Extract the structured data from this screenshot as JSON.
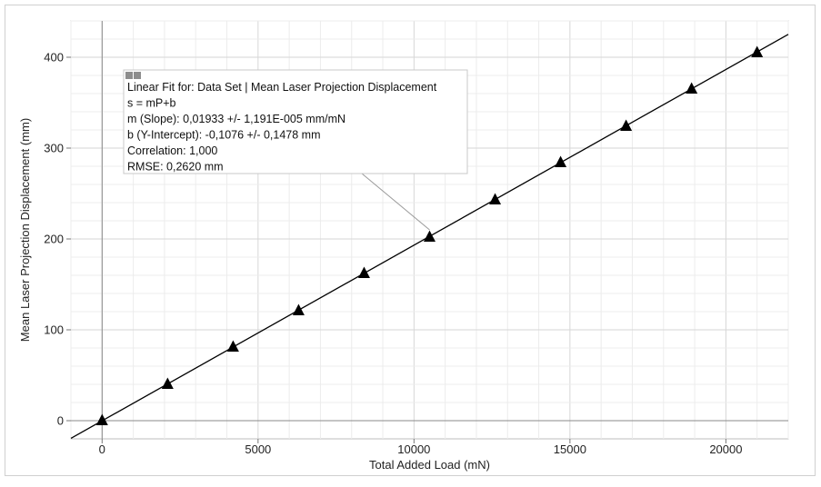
{
  "chart_data": {
    "type": "scatter",
    "xlabel": "Total Added Load (mN)",
    "ylabel": "Mean Laser Projection Displacement (mm)",
    "xlim": [
      -1000,
      22000
    ],
    "ylim": [
      -20,
      440
    ],
    "x_ticks": [
      0,
      5000,
      10000,
      15000,
      20000
    ],
    "y_ticks": [
      0,
      100,
      200,
      300,
      400
    ],
    "grid": true,
    "series": [
      {
        "x": [
          0,
          2100,
          4200,
          6300,
          8400,
          10500,
          12600,
          14700,
          16800,
          18900,
          21000
        ],
        "y": [
          0,
          40,
          81,
          121,
          162,
          202,
          243,
          284,
          324,
          365,
          405
        ],
        "marker": "triangle",
        "color": "#000000"
      }
    ],
    "fit": {
      "slope": 0.01933,
      "intercept": -0.1076,
      "color": "#000000"
    },
    "annotation": {
      "lines": [
        "Linear Fit for: Data Set | Mean Laser Projection Displacement",
        "s = mP+b",
        "m (Slope): 0,01933 +/- 1,191E-005 mm/mN",
        "b (Y-Intercept): -0,1076 +/- 0,1478 mm",
        "Correlation: 1,000",
        "RMSE: 0,2620 mm"
      ],
      "points_to": {
        "x": 10500,
        "y": 202
      }
    }
  }
}
